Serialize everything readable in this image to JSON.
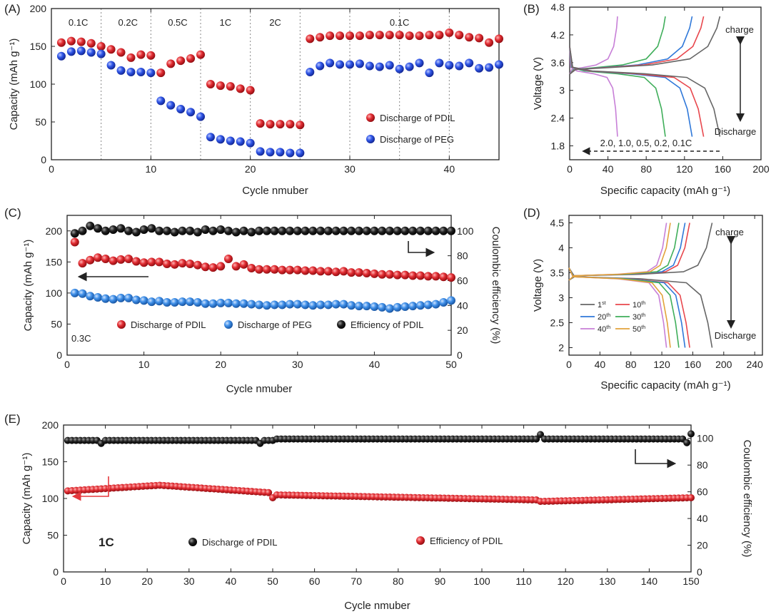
{
  "chart_data": [
    {
      "id": "A",
      "type": "scatter",
      "panel_label": "(A)",
      "xlabel": "Cycle nmuber",
      "ylabel": "Capacity (mAh g⁻¹)",
      "xlim": [
        0,
        45
      ],
      "ylim": [
        0,
        200
      ],
      "xticks": [
        0,
        10,
        20,
        30,
        40
      ],
      "yticks": [
        0,
        50,
        100,
        150,
        200
      ],
      "rate_labels": [
        {
          "text": "0.1C",
          "x": 2.7
        },
        {
          "text": "0.2C",
          "x": 7.7
        },
        {
          "text": "0.5C",
          "x": 12.7
        },
        {
          "text": "1C",
          "x": 17.5
        },
        {
          "text": "2C",
          "x": 22.5
        },
        {
          "text": "0.1C",
          "x": 35
        }
      ],
      "dividers": [
        5,
        10,
        15,
        20,
        25,
        30,
        35,
        40
      ],
      "legend": "center-right",
      "series": [
        {
          "name": "Discharge of PDIL",
          "color": "#d42026",
          "x": [
            1,
            2,
            3,
            4,
            5,
            6,
            7,
            8,
            9,
            10,
            11,
            12,
            13,
            14,
            15,
            16,
            17,
            18,
            19,
            20,
            21,
            22,
            23,
            24,
            25,
            26,
            27,
            28,
            29,
            30,
            31,
            32,
            33,
            34,
            35,
            36,
            37,
            38,
            39,
            40,
            41,
            42,
            43,
            44,
            45
          ],
          "y": [
            155,
            157,
            156,
            154,
            150,
            146,
            142,
            135,
            139,
            138,
            115,
            127,
            131,
            134,
            139,
            100,
            98,
            97,
            94,
            92,
            48,
            47,
            47,
            47,
            46,
            160,
            162,
            164,
            164,
            164,
            164,
            165,
            165,
            165,
            165,
            164,
            164,
            165,
            165,
            168,
            165,
            162,
            161,
            155,
            160
          ]
        },
        {
          "name": "Discharge of PEG",
          "color": "#2b4de0",
          "x": [
            1,
            2,
            3,
            4,
            5,
            6,
            7,
            8,
            9,
            10,
            11,
            12,
            13,
            14,
            15,
            16,
            17,
            18,
            19,
            20,
            21,
            22,
            23,
            24,
            25,
            26,
            27,
            28,
            29,
            30,
            31,
            32,
            33,
            34,
            35,
            36,
            37,
            38,
            39,
            40,
            41,
            42,
            43,
            44,
            45
          ],
          "y": [
            137,
            143,
            144,
            142,
            140,
            125,
            118,
            116,
            116,
            115,
            78,
            72,
            67,
            63,
            57,
            30,
            27,
            25,
            24,
            22,
            11,
            10,
            10,
            9,
            9,
            116,
            124,
            128,
            126,
            126,
            127,
            124,
            123,
            125,
            120,
            123,
            128,
            115,
            128,
            125,
            124,
            128,
            121,
            122,
            126
          ]
        }
      ]
    },
    {
      "id": "B",
      "type": "line",
      "panel_label": "(B)",
      "xlabel": "Specific capacity (mAh g⁻¹)",
      "ylabel": "Voltage (V)",
      "xlim": [
        0,
        200
      ],
      "ylim": [
        1.5,
        4.8
      ],
      "xticks": [
        0,
        40,
        80,
        120,
        160,
        200
      ],
      "yticks": [
        1.8,
        2.4,
        3,
        3.6,
        4.2,
        4.8
      ],
      "ytick_labels": [
        "1.8",
        "2.4",
        "3",
        "3.6",
        "4.2",
        "4.8"
      ],
      "annotations": [
        "charge",
        "Discharge",
        "2.0, 1.0,  0.5,  0.2,  0.1C"
      ],
      "series": [
        {
          "name": "2.0C",
          "color": "#c77fd7",
          "capacity": 50
        },
        {
          "name": "1.0C",
          "color": "#3fae5a",
          "capacity": 100
        },
        {
          "name": "0.5C",
          "color": "#2f78d9",
          "capacity": 128
        },
        {
          "name": "0.2C",
          "color": "#e8474d",
          "capacity": 140
        },
        {
          "name": "0.1C",
          "color": "#666666",
          "capacity": 157
        }
      ]
    },
    {
      "id": "C",
      "type": "scatter",
      "panel_label": "(C)",
      "xlabel": "Cycle nmuber",
      "ylabel": "Capacity (mAh g⁻¹)",
      "y2label": "Coulombic efficiency (%)",
      "xlim": [
        0,
        50
      ],
      "ylim": [
        0,
        225
      ],
      "y2lim": [
        0,
        112.5
      ],
      "xticks": [
        0,
        10,
        20,
        30,
        40,
        50
      ],
      "yticks": [
        0,
        50,
        100,
        150,
        200
      ],
      "y2ticks": [
        0,
        20,
        40,
        60,
        80,
        100
      ],
      "annotation": "0.3C",
      "legend": "bottom",
      "series": [
        {
          "name": "Discharge of PDIL",
          "color": "#d42026",
          "axis": "left",
          "x": [
            1,
            2,
            3,
            4,
            5,
            6,
            7,
            8,
            9,
            10,
            11,
            12,
            13,
            14,
            15,
            16,
            17,
            18,
            19,
            20,
            21,
            22,
            23,
            24,
            25,
            26,
            27,
            28,
            29,
            30,
            31,
            32,
            33,
            34,
            35,
            36,
            37,
            38,
            39,
            40,
            41,
            42,
            43,
            44,
            45,
            46,
            47,
            48,
            49,
            50
          ],
          "y": [
            182,
            148,
            153,
            157,
            155,
            152,
            154,
            155,
            151,
            149,
            150,
            150,
            147,
            146,
            148,
            147,
            145,
            142,
            141,
            143,
            155,
            143,
            146,
            140,
            138,
            138,
            138,
            137,
            137,
            137,
            136,
            136,
            135,
            135,
            134,
            135,
            133,
            133,
            132,
            131,
            130,
            130,
            129,
            129,
            128,
            128,
            127,
            127,
            126,
            125
          ]
        },
        {
          "name": "Discharge of PEG",
          "color": "#3b82dd",
          "axis": "left",
          "x": [
            1,
            2,
            3,
            4,
            5,
            6,
            7,
            8,
            9,
            10,
            11,
            12,
            13,
            14,
            15,
            16,
            17,
            18,
            19,
            20,
            21,
            22,
            23,
            24,
            25,
            26,
            27,
            28,
            29,
            30,
            31,
            32,
            33,
            34,
            35,
            36,
            37,
            38,
            39,
            40,
            41,
            42,
            43,
            44,
            45,
            46,
            47,
            48,
            49,
            50
          ],
          "y": [
            100,
            99,
            95,
            93,
            91,
            90,
            92,
            92,
            89,
            88,
            86,
            87,
            85,
            85,
            86,
            86,
            85,
            83,
            83,
            84,
            84,
            83,
            83,
            82,
            81,
            80,
            81,
            81,
            82,
            82,
            81,
            80,
            81,
            81,
            82,
            82,
            80,
            79,
            79,
            78,
            77,
            75,
            77,
            78,
            79,
            80,
            81,
            82,
            85,
            88
          ]
        },
        {
          "name": "Efficiency of PDIL",
          "color": "#111111",
          "axis": "right",
          "x": [
            1,
            2,
            3,
            4,
            5,
            6,
            7,
            8,
            9,
            10,
            11,
            12,
            13,
            14,
            15,
            16,
            17,
            18,
            19,
            20,
            21,
            22,
            23,
            24,
            25,
            26,
            27,
            28,
            29,
            30,
            31,
            32,
            33,
            34,
            35,
            36,
            37,
            38,
            39,
            40,
            41,
            42,
            43,
            44,
            45,
            46,
            47,
            48,
            49,
            50
          ],
          "y": [
            98,
            100,
            104,
            102,
            100,
            101,
            102,
            100,
            99,
            101,
            102,
            100,
            100,
            99,
            100,
            100,
            99,
            101,
            100,
            101,
            100,
            99,
            100,
            99,
            100,
            100,
            100,
            100,
            100,
            100,
            100,
            100,
            100,
            100,
            100,
            100,
            100,
            100,
            100,
            100,
            100,
            100,
            100,
            100,
            100,
            100,
            100,
            100,
            100,
            100
          ]
        }
      ]
    },
    {
      "id": "D",
      "type": "line",
      "panel_label": "(D)",
      "xlabel": "Specific capacity (mAh g⁻¹)",
      "ylabel": "Voltage (V)",
      "xlim": [
        0,
        250
      ],
      "ylim": [
        1.85,
        4.65
      ],
      "xticks": [
        0,
        40,
        80,
        120,
        160,
        200,
        240
      ],
      "yticks": [
        2,
        2.5,
        3,
        3.5,
        4,
        4.5
      ],
      "ytick_labels": [
        "2",
        "2.5",
        "3",
        "3.5",
        "4",
        "4.5"
      ],
      "annotations": [
        "charge",
        "Discharge"
      ],
      "series": [
        {
          "name": "1st",
          "label": "1",
          "sup": "st",
          "color": "#666666",
          "capacity": 185
        },
        {
          "name": "10th",
          "label": "10",
          "sup": "th",
          "color": "#e8474d",
          "capacity": 156
        },
        {
          "name": "20th",
          "label": "20",
          "sup": "th",
          "color": "#2f78d9",
          "capacity": 150
        },
        {
          "name": "30th",
          "label": "30",
          "sup": "th",
          "color": "#3fae5a",
          "capacity": 142
        },
        {
          "name": "40th",
          "label": "40",
          "sup": "th",
          "color": "#c77fd7",
          "capacity": 126
        },
        {
          "name": "50th",
          "label": "50",
          "sup": "th",
          "color": "#e2a23b",
          "capacity": 131
        }
      ]
    },
    {
      "id": "E",
      "type": "scatter",
      "panel_label": "(E)",
      "xlabel": "Cycle nmuber",
      "ylabel": "Capacity (mAh g⁻¹)",
      "y2label": "Coulombic efficiency (%)",
      "xlim": [
        0,
        150
      ],
      "ylim": [
        0,
        200
      ],
      "y2lim": [
        0,
        110
      ],
      "xticks": [
        0,
        10,
        20,
        30,
        40,
        50,
        60,
        70,
        80,
        90,
        100,
        110,
        120,
        130,
        140,
        150
      ],
      "yticks": [
        0,
        50,
        100,
        150,
        200
      ],
      "y2ticks": [
        0,
        20,
        40,
        60,
        80,
        100
      ],
      "annotation": "1C",
      "legend": [
        "Discharge of PDIL",
        "Efficiency of PDIL"
      ],
      "series": [
        {
          "name": "Efficiency of PDIL",
          "color": "#d42026",
          "axis": "left",
          "start": 110,
          "points": 150
        },
        {
          "name": "Discharge of PDIL",
          "color": "#111111",
          "axis": "left",
          "start": 180,
          "points": 150
        }
      ]
    }
  ]
}
